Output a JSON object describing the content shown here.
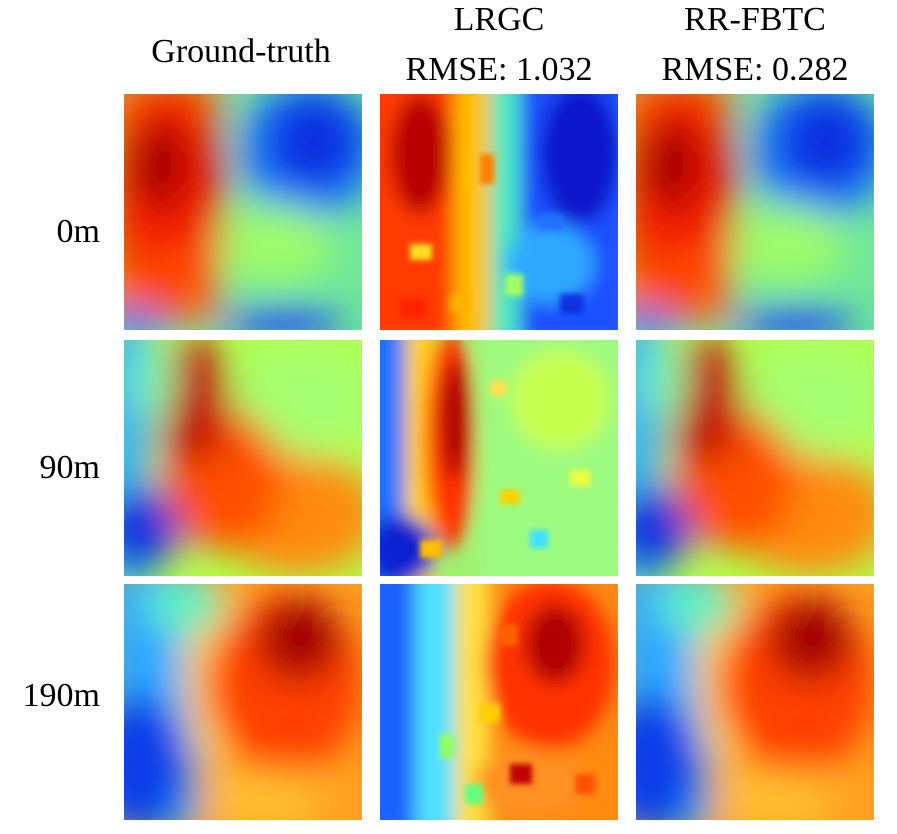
{
  "columns": [
    {
      "title": "Ground-truth",
      "subtitle": ""
    },
    {
      "title": "LRGC",
      "subtitle": "RMSE: 1.032"
    },
    {
      "title": "RR-FBTC",
      "subtitle": "RMSE: 0.282"
    }
  ],
  "rows": [
    {
      "label": "0m"
    },
    {
      "label": "90m"
    },
    {
      "label": "190m"
    }
  ],
  "colormap": "jet"
}
